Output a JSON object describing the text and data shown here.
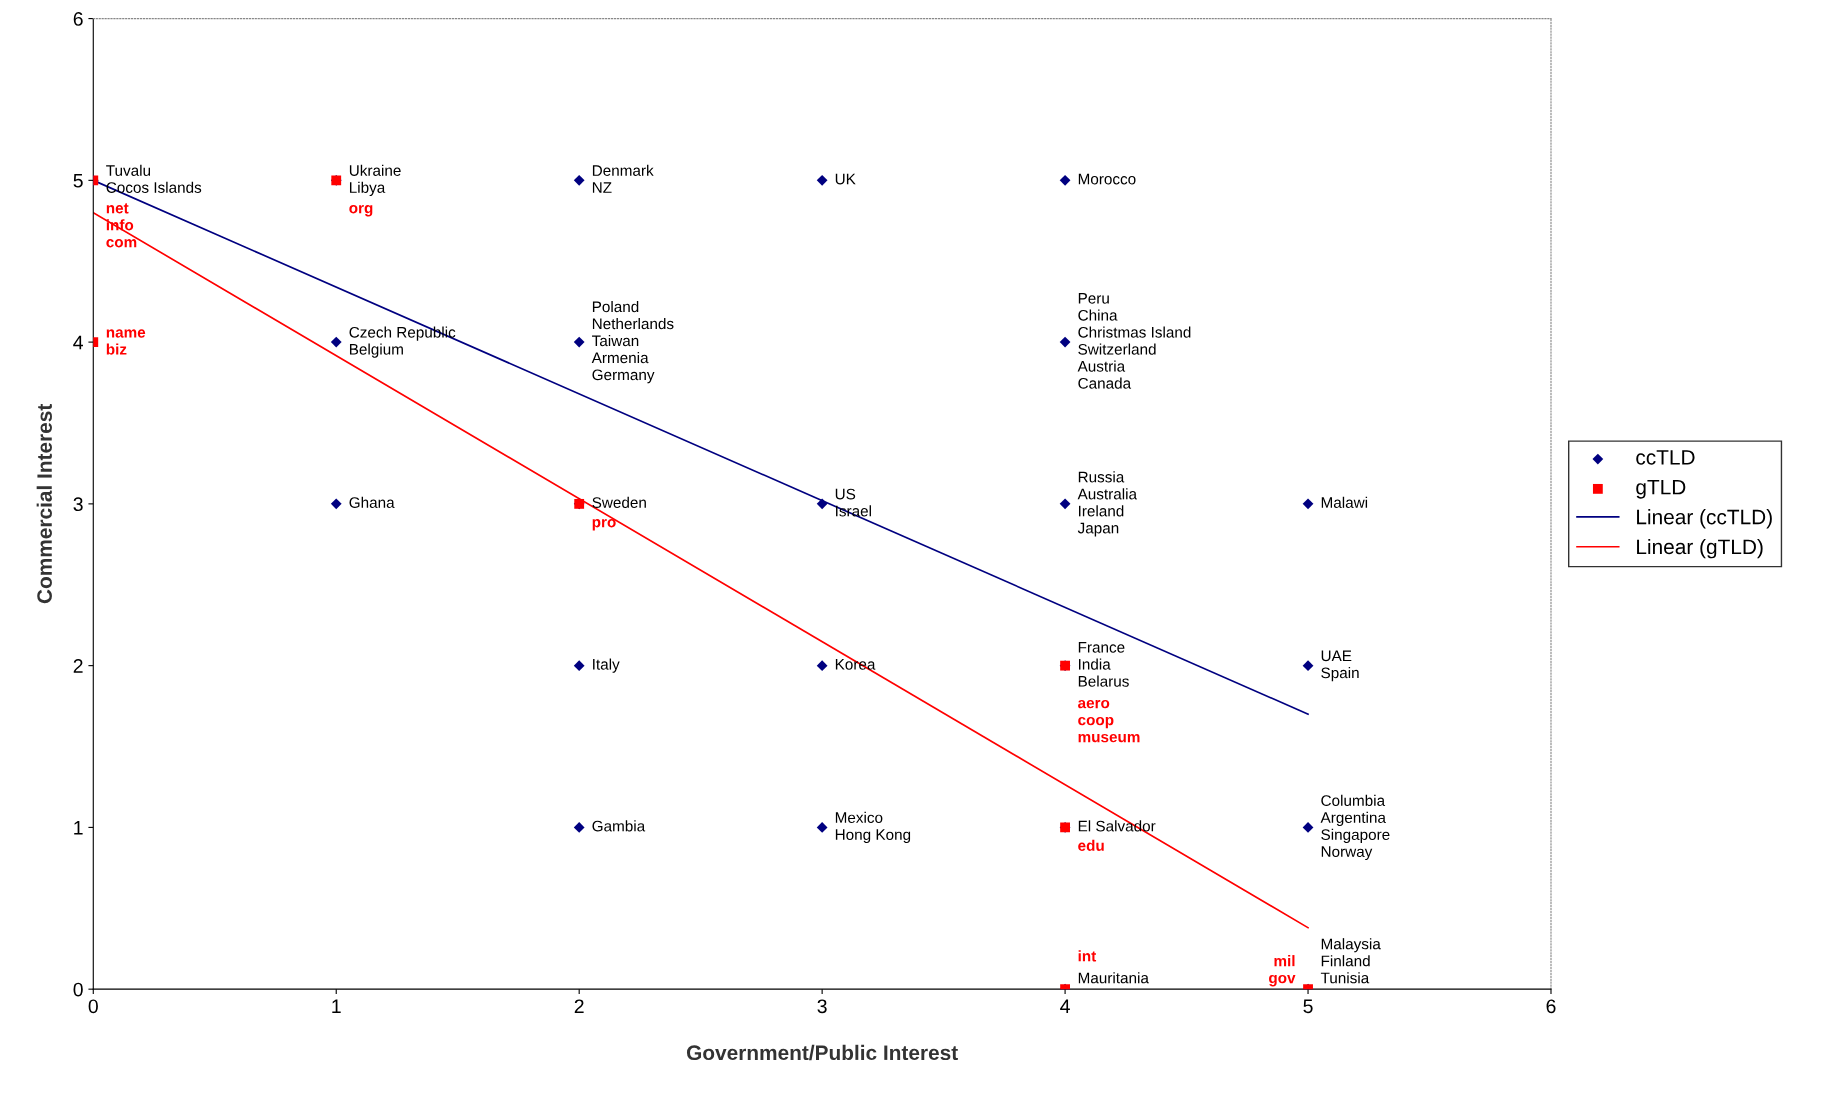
{
  "chart_data": {
    "type": "scatter",
    "xlabel": "Government/Public Interest",
    "ylabel": "Commercial Interest",
    "xlim": [
      0,
      6
    ],
    "ylim": [
      0,
      6
    ],
    "xticks": [
      0,
      1,
      2,
      3,
      4,
      5,
      6
    ],
    "yticks": [
      0,
      1,
      2,
      3,
      4,
      5,
      6
    ],
    "legend": "right",
    "series": [
      {
        "name": "ccTLD",
        "marker": "diamond",
        "color": "#000080",
        "x": [
          0,
          1,
          2,
          3,
          4,
          1,
          2,
          4,
          1,
          2,
          3,
          4,
          5,
          2,
          3,
          4,
          5,
          2,
          3,
          4,
          5,
          4,
          5
        ],
        "values": [
          5,
          5,
          5,
          5,
          5,
          4,
          4,
          4,
          3,
          3,
          3,
          3,
          3,
          2,
          2,
          2,
          2,
          1,
          1,
          1,
          1,
          0,
          0
        ],
        "value_labels": [
          "Tuvalu\nCocos Islands",
          "Ukraine\nLibya",
          "Denmark\nNZ",
          "UK",
          "Morocco",
          "Czech Republic\nBelgium",
          "Poland\nNetherlands\nTaiwan\nArmenia\nGermany",
          "Peru\nChina\nChristmas Island\nSwitzerland\nAustria\nCanada",
          "Ghana",
          "Sweden",
          "US\nIsrael",
          "Russia\nAustralia\nIreland\nJapan",
          "Malawi",
          "Italy",
          "Korea",
          "France\nIndia\nBelarus",
          "UAE\nSpain",
          "Gambia",
          "Mexico\nHong Kong",
          "El Salvador",
          "Columbia\nArgentina\nSingapore\nNorway",
          "Mauritania",
          "Malaysia\nFinland\nTunisia"
        ]
      },
      {
        "name": "gTLD",
        "marker": "square",
        "color": "#ff0000",
        "x": [
          0,
          1,
          0,
          2,
          4,
          4,
          4,
          5
        ],
        "values": [
          5,
          5,
          4,
          3,
          2,
          1,
          0,
          0
        ],
        "value_labels": [
          "net\ninfo\ncom",
          "org",
          "name\nbiz",
          "pro",
          "aero\ncoop\nmuseum",
          "edu",
          "int",
          "mil\ngov"
        ]
      },
      {
        "name": "Linear (ccTLD)",
        "type": "line",
        "marker": "none",
        "color": "#000080",
        "x": [
          0,
          5
        ],
        "values": [
          5.0,
          1.7
        ]
      },
      {
        "name": "Linear (gTLD)",
        "type": "line",
        "marker": "none",
        "color": "#ff0000",
        "x": [
          0,
          5
        ],
        "values": [
          4.8,
          0.38
        ]
      }
    ]
  }
}
